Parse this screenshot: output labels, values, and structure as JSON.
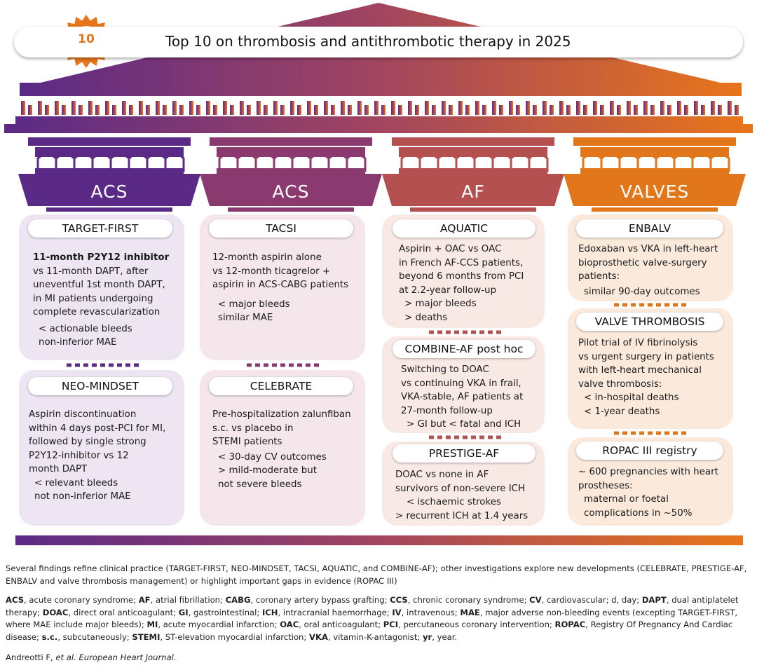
{
  "title": "Top 10 on thrombosis and antithrombotic therapy in 2025",
  "badge": "10",
  "colors": {
    "purple": "#5B2A86",
    "orange": "#E8751A"
  },
  "columns": [
    {
      "label": "ACS",
      "studies": [
        {
          "name": "TARGET-FIRST",
          "lines": [
            "11-month P2Y12 inhibitor",
            "vs 11-month DAPT, after",
            "uneventful 1st month DAPT,",
            "in MI patients undergoing",
            "complete revascularization"
          ],
          "outcomes": [
            "< actionable bleeds",
            "non-inferior MAE"
          ]
        },
        {
          "name": "NEO-MINDSET",
          "lines": [
            "Aspirin discontinuation",
            "within 4 days post-PCI for MI,",
            "followed by single strong",
            "P2Y12-inhibitor vs 12",
            "month DAPT"
          ],
          "outcomes": [
            "< relevant bleeds",
            "not non-inferior MAE"
          ]
        }
      ]
    },
    {
      "label": "ACS",
      "studies": [
        {
          "name": "TACSI",
          "lines": [
            "12-month aspirin alone",
            "vs 12-month ticagrelor +",
            "aspirin in ACS-CABG patients"
          ],
          "outcomes": [
            "< major bleeds",
            "similar MAE"
          ]
        },
        {
          "name": "CELEBRATE",
          "lines": [
            "Pre-hospitalization zalunfiban",
            "s.c. vs placebo in",
            "STEMI patients"
          ],
          "outcomes": [
            "< 30-day CV outcomes",
            "> mild-moderate but",
            "not severe bleeds"
          ]
        }
      ]
    },
    {
      "label": "AF",
      "studies": [
        {
          "name": "AQUATIC",
          "lines": [
            "Aspirin + OAC vs OAC",
            "in French AF-CCS patients,",
            "beyond 6 months from PCI",
            "at 2.2-year follow-up"
          ],
          "outcomes": [
            "> major bleeds",
            "> deaths"
          ]
        },
        {
          "name": "COMBINE-AF post hoc",
          "lines": [
            "Switching to DOAC",
            "vs continuing VKA in frail,",
            "VKA-stable, AF patients at",
            "27-month follow-up"
          ],
          "outcomes": [
            "> GI but < fatal and ICH"
          ]
        },
        {
          "name": "PRESTIGE-AF",
          "lines": [
            "DOAC vs none in AF",
            "survivors of non-severe ICH"
          ],
          "outcomes": [
            "< ischaemic strokes",
            "> recurrent ICH at 1.4 years"
          ]
        }
      ]
    },
    {
      "label": "VALVES",
      "studies": [
        {
          "name": "ENBALV",
          "lines": [
            "Edoxaban vs VKA in left-heart",
            "bioprosthetic valve-surgery",
            "patients:"
          ],
          "outcomes": [
            "similar 90-day outcomes"
          ]
        },
        {
          "name": "VALVE THROMBOSIS",
          "lines": [
            "Pilot trial of IV fibrinolysis",
            "vs urgent surgery in patients",
            "with left-heart mechanical",
            "valve thrombosis:"
          ],
          "outcomes": [
            "< in-hospital deaths",
            "< 1-year deaths"
          ]
        },
        {
          "name": "ROPAC III registry",
          "lines": [
            "~ 600 pregnancies with heart",
            "prostheses:"
          ],
          "outcomes": [
            "maternal or foetal",
            "complications in ~50%"
          ]
        }
      ]
    }
  ],
  "caption": "Several findings refine clinical practice (TARGET-FIRST, NEO-MINDSET, TACSI, AQUATIC, and COMBINE-AF); other investigations explore new developments (CELEBRATE, PRESTIGE-AF, ENBALV and valve thrombosis management) or highlight important gaps in evidence (ROPAC III)",
  "abbreviations": [
    {
      "term": "ACS",
      "def": "acute coronary syndrome"
    },
    {
      "term": "AF",
      "def": "atrial fibrillation"
    },
    {
      "term": "CABG",
      "def": "coronary artery bypass grafting"
    },
    {
      "term": "CCS",
      "def": "chronic coronary syndrome"
    },
    {
      "term": "CV",
      "def": "cardiovascular; d, day"
    },
    {
      "term": "DAPT",
      "def": "dual antiplatelet therapy"
    },
    {
      "term": "DOAC",
      "def": "direct oral anticoagulant"
    },
    {
      "term": "GI",
      "def": "gastrointestinal"
    },
    {
      "term": "ICH",
      "def": "intracranial haemorrhage"
    },
    {
      "term": "IV",
      "def": "intravenous"
    },
    {
      "term": "MAE",
      "def": "major adverse non-bleeding events (excepting TARGET-FIRST, where MAE include major bleeds)"
    },
    {
      "term": "MI",
      "def": "acute myocardial infarction"
    },
    {
      "term": "OAC",
      "def": "oral anticoagulant"
    },
    {
      "term": "PCI",
      "def": "percutaneous coronary intervention"
    },
    {
      "term": "ROPAC",
      "def": "Registry Of Pregnancy And Cardiac disease"
    },
    {
      "term": "s.c.",
      "def": "subcutaneously"
    },
    {
      "term": "STEMI",
      "def": "ST-elevation myocardial infarction"
    },
    {
      "term": "VKA",
      "def": "vitamin-K-antagonist"
    },
    {
      "term": "yr",
      "def": "year."
    }
  ],
  "citation": {
    "authors": "Andreotti F, ",
    "etal": "et al.",
    "journal": " European Heart Journal."
  }
}
